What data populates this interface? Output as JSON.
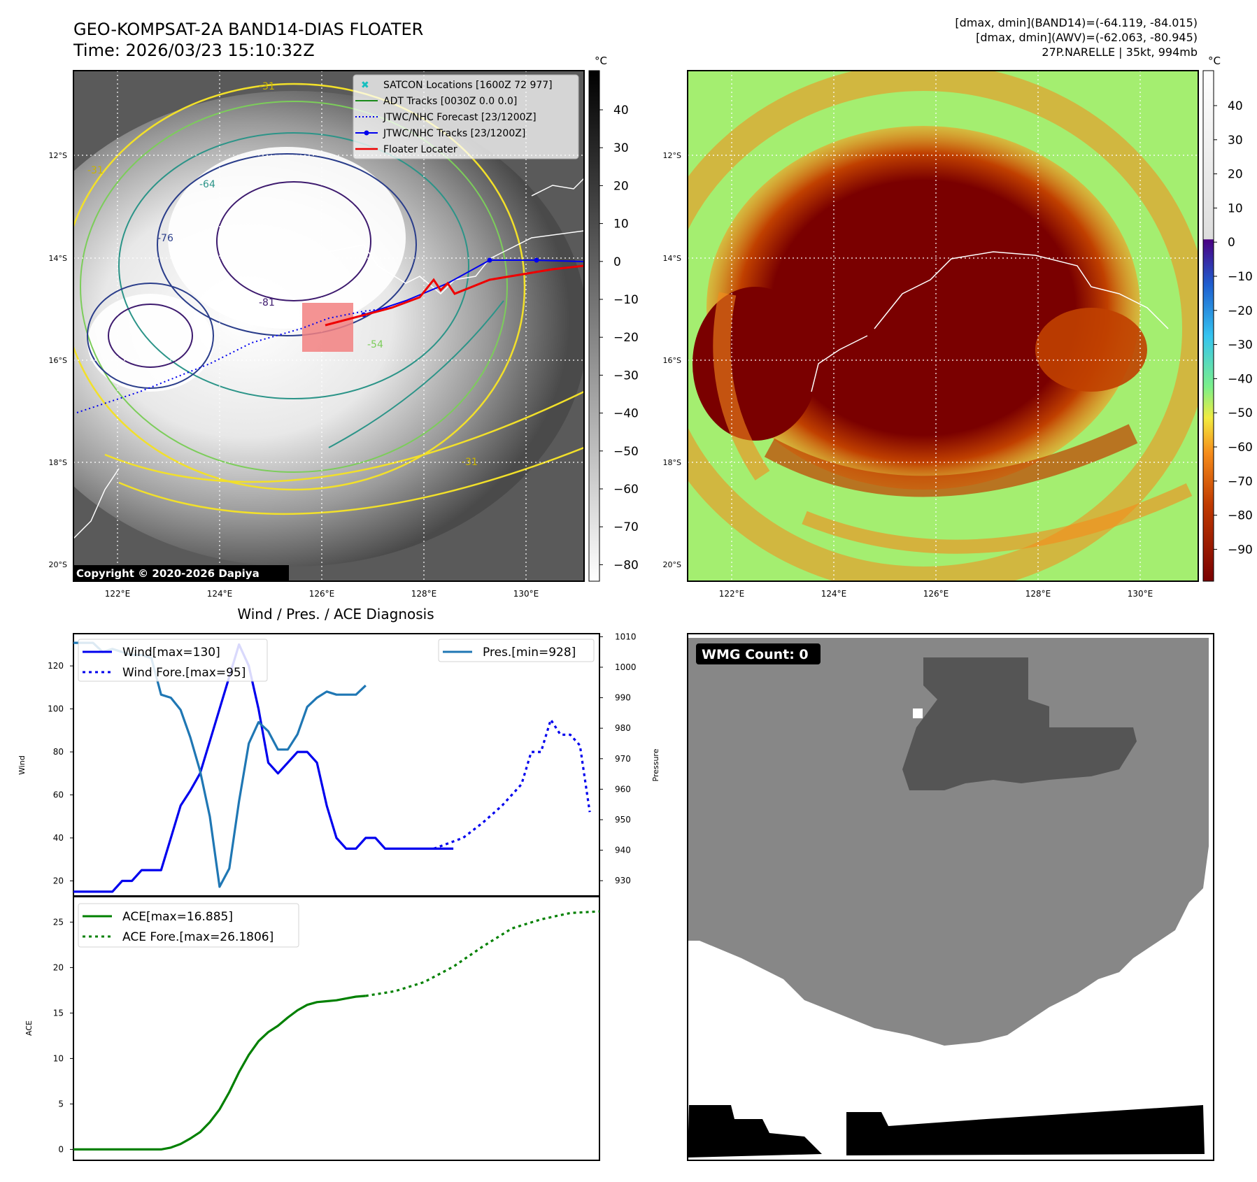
{
  "header": {
    "title": "GEO-KOMPSAT-2A BAND14-DIAS FLOATER",
    "time": "Time: 2026/03/23 15:10:32Z",
    "info_line1": "[dmax, dmin](BAND14)=(-64.119, -84.015)",
    "info_line2": "[dmax, dmin](AWV)=(-62.063, -80.945)",
    "info_line3": "27P.NARELLE | 35kt, 994mb"
  },
  "map": {
    "lat_labels": [
      "12°S",
      "14°S",
      "16°S",
      "18°S",
      "20°S"
    ],
    "lon_labels": [
      "122°E",
      "124°E",
      "126°E",
      "128°E",
      "130°E"
    ],
    "copyright": "Copyright © 2020-2026 Dapiya",
    "contour_labels": [
      "-31",
      "-54",
      "-64",
      "-76",
      "-81",
      "-76",
      "-31",
      "-31",
      "-31",
      "-54",
      "-64"
    ],
    "legend": [
      {
        "label": "SATCON Locations [1600Z 72 977]",
        "color": "#17bfbf"
      },
      {
        "label": "ADT Tracks [0030Z 0.0 0.0]",
        "color": "#1a8a1a"
      },
      {
        "label": "JTWC/NHC Forecast [23/1200Z]",
        "color": "#0000ee"
      },
      {
        "label": "JTWC/NHC Tracks [23/1200Z]",
        "color": "#0000ee"
      },
      {
        "label": "Floater Locater",
        "color": "#ee0000"
      }
    ]
  },
  "colorbars": {
    "unit": "°C",
    "gray_ticks": [
      "40",
      "30",
      "20",
      "10",
      "0",
      "−10",
      "−20",
      "−30",
      "−40",
      "−50",
      "−60",
      "−70",
      "−80"
    ],
    "color_ticks": [
      "40",
      "30",
      "20",
      "10",
      "0",
      "−10",
      "−20",
      "−30",
      "−40",
      "−50",
      "−60",
      "−70",
      "−80",
      "−90"
    ]
  },
  "wmg": {
    "label": "WMG Count: 0"
  },
  "chart_data": [
    {
      "type": "line",
      "title": "Wind / Pres. / ACE Diagnosis",
      "ylabel": "Wind",
      "y2label": "Pressure",
      "ylim": [
        13,
        135
      ],
      "y2lim": [
        925,
        1011
      ],
      "yticks": [
        20,
        40,
        60,
        80,
        100,
        120
      ],
      "y2ticks": [
        930,
        940,
        950,
        960,
        970,
        980,
        990,
        1000,
        1010
      ],
      "xlim": [
        0,
        54
      ],
      "series": [
        {
          "name": "Wind[max=130]",
          "color": "#0000ee",
          "style": "solid",
          "axis": "left",
          "x": [
            0,
            3,
            4,
            5,
            6,
            7,
            8,
            9,
            10,
            11,
            12,
            13,
            14,
            15,
            16,
            17,
            18,
            19,
            20,
            21,
            22,
            23,
            24,
            25,
            26,
            27,
            28,
            29,
            30,
            31,
            32,
            33,
            34,
            35,
            36,
            37,
            38,
            39
          ],
          "values": [
            15,
            15,
            15,
            20,
            20,
            25,
            25,
            25,
            40,
            55,
            62,
            70,
            85,
            100,
            115,
            130,
            120,
            100,
            75,
            70,
            75,
            80,
            80,
            75,
            55,
            40,
            35,
            35,
            40,
            40,
            35,
            35,
            35,
            35,
            35,
            35,
            35,
            35
          ]
        },
        {
          "name": "Wind Fore.[max=95]",
          "color": "#0000ee",
          "style": "dotted",
          "axis": "left",
          "x": [
            37,
            40,
            42,
            44,
            45,
            46,
            47,
            48,
            49,
            50,
            51,
            52,
            53
          ],
          "values": [
            35,
            40,
            47,
            55,
            60,
            65,
            80,
            80,
            95,
            88,
            88,
            83,
            52
          ]
        },
        {
          "name": "Pres.[min=928]",
          "color": "#1f77b4",
          "style": "solid",
          "axis": "right",
          "x": [
            0,
            2,
            3,
            4,
            5,
            6,
            7,
            8,
            9,
            10,
            11,
            12,
            13,
            14,
            15,
            16,
            17,
            18,
            19,
            20,
            21,
            22,
            23,
            24,
            25,
            26,
            27,
            28,
            29,
            30
          ],
          "values": [
            1008,
            1008,
            1005,
            1006,
            1005,
            1004,
            1004,
            1003,
            991,
            990,
            986,
            977,
            966,
            951,
            928,
            934,
            956,
            975,
            982,
            979,
            973,
            973,
            978,
            987,
            990,
            992,
            991,
            991,
            991,
            994
          ]
        }
      ],
      "legend_labels": [
        "Wind[max=130]",
        "Wind Fore.[max=95]",
        "Pres.[min=928]"
      ]
    },
    {
      "type": "line",
      "ylabel": "ACE",
      "ylim": [
        -1.2,
        27.8
      ],
      "yticks": [
        0,
        5,
        10,
        15,
        20,
        25
      ],
      "xlim": [
        0,
        54
      ],
      "series": [
        {
          "name": "ACE[max=16.885]",
          "color": "#008000",
          "style": "solid",
          "x": [
            0,
            9,
            10,
            11,
            12,
            13,
            14,
            15,
            16,
            17,
            18,
            19,
            20,
            21,
            22,
            23,
            24,
            25,
            26,
            27,
            28,
            29,
            30
          ],
          "values": [
            0,
            0,
            0.2,
            0.6,
            1.2,
            1.9,
            3,
            4.4,
            6.3,
            8.5,
            10.4,
            11.9,
            12.9,
            13.6,
            14.5,
            15.3,
            15.9,
            16.2,
            16.3,
            16.4,
            16.6,
            16.8,
            16.885
          ]
        },
        {
          "name": "ACE Fore.[max=26.1806]",
          "color": "#008000",
          "style": "dotted",
          "x": [
            30,
            33,
            36,
            39,
            42,
            45,
            48,
            51,
            54
          ],
          "values": [
            16.885,
            17.4,
            18.4,
            20.1,
            22.3,
            24.3,
            25.3,
            26.0,
            26.1806
          ]
        }
      ],
      "legend_labels": [
        "ACE[max=16.885]",
        "ACE Fore.[max=26.1806]"
      ]
    }
  ]
}
